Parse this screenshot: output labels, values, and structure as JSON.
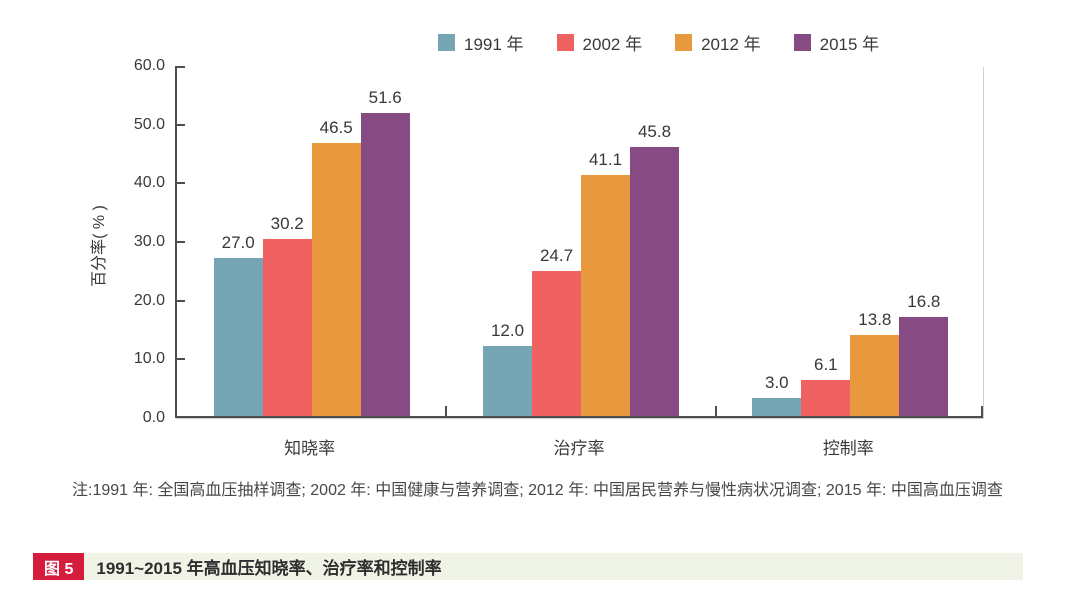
{
  "chart_data": {
    "type": "bar",
    "categories": [
      "知晓率",
      "治疗率",
      "控制率"
    ],
    "series": [
      {
        "name": "1991 年",
        "color": "#76A6B3",
        "values": [
          27.0,
          12.0,
          3.0
        ]
      },
      {
        "name": "2002 年",
        "color": "#F06261",
        "values": [
          30.2,
          24.7,
          6.1
        ]
      },
      {
        "name": "2012 年",
        "color": "#E8993E",
        "values": [
          46.5,
          41.1,
          13.8
        ]
      },
      {
        "name": "2015 年",
        "color": "#864B82",
        "values": [
          51.6,
          45.8,
          16.8
        ]
      }
    ],
    "ylabel": "百分率( % )",
    "ylim": [
      0,
      60
    ],
    "ytick_labels": [
      "0.0",
      "10.0",
      "20.0",
      "30.0",
      "40.0",
      "50.0",
      "60.0"
    ],
    "value_label_decimals": 1,
    "grid": false,
    "legend_position": "top"
  },
  "note": {
    "text": "注:1991 年: 全国高血压抽样调查; 2002 年: 中国健康与营养调查; 2012 年: 中国居民营养与慢性病状况调查; 2015 年: 中国高血压调查"
  },
  "caption": {
    "badge": "图 5",
    "title": "1991~2015 年高血压知晓率、治疗率和控制率",
    "badge_color": "#D51C3C",
    "bar_color": "#EFF4E6"
  }
}
